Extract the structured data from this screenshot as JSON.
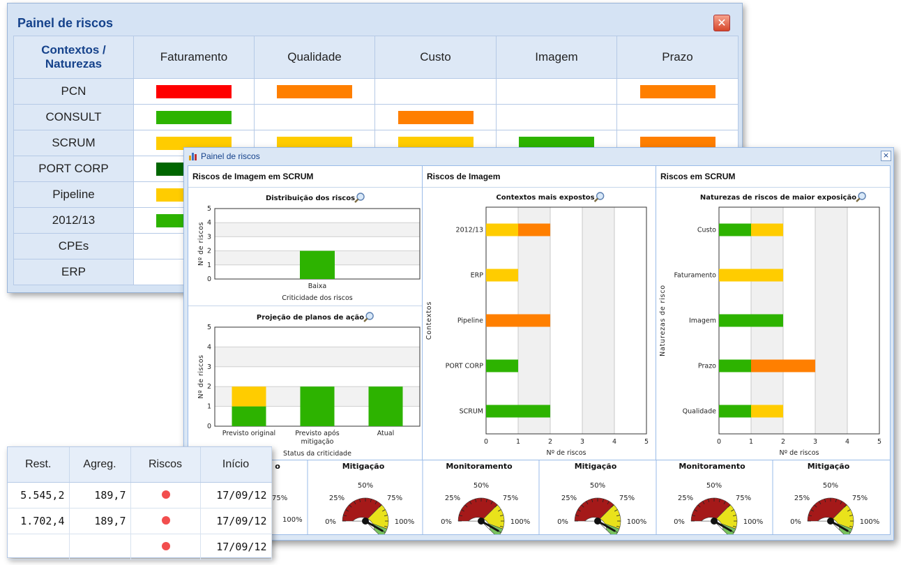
{
  "colors": {
    "red": "#ff0000",
    "orange": "#ff7f00",
    "green": "#2db300",
    "yellow": "#ffcc00",
    "darkgreen": "#006600",
    "titleblue": "#15428b"
  },
  "back_window": {
    "title": "Painel de riscos",
    "corner_header": [
      "Contextos /",
      "Naturezas"
    ],
    "columns": [
      "Faturamento",
      "Qualidade",
      "Custo",
      "Imagem",
      "Prazo"
    ],
    "rows": [
      {
        "label": "PCN",
        "cells": [
          "red",
          "orange",
          "",
          "",
          "orange"
        ]
      },
      {
        "label": "CONSULT",
        "cells": [
          "green",
          "",
          "orange",
          "",
          ""
        ]
      },
      {
        "label": "SCRUM",
        "cells": [
          "yellow",
          "yellow",
          "yellow",
          "green",
          "orange"
        ]
      },
      {
        "label": "PORT CORP",
        "cells": [
          "darkgreen",
          "",
          "",
          "",
          ""
        ]
      },
      {
        "label": "Pipeline",
        "cells": [
          "yellow",
          "",
          "",
          "",
          ""
        ]
      },
      {
        "label": "2012/13",
        "cells": [
          "green",
          "",
          "",
          "",
          ""
        ]
      },
      {
        "label": "CPEs",
        "cells": [
          "",
          "",
          "",
          "",
          ""
        ]
      },
      {
        "label": "ERP",
        "cells": [
          "",
          "",
          "",
          "",
          ""
        ]
      }
    ]
  },
  "front_window": {
    "title": "Painel de riscos",
    "close_label": "×",
    "panels": {
      "left": {
        "header": "Riscos de Imagem em SCRUM"
      },
      "middle": {
        "header": "Riscos de Imagem"
      },
      "right": {
        "header": "Riscos em SCRUM"
      }
    },
    "gauges": [
      {
        "title": "Mitigação",
        "labels": [
          "0%",
          "25%",
          "50%",
          "75%",
          "100%"
        ]
      },
      {
        "title": "Monitoramento",
        "labels": [
          "0%",
          "25%",
          "50%",
          "75%",
          "100%"
        ]
      },
      {
        "title": "Mitigação",
        "labels": [
          "0%",
          "25%",
          "50%",
          "75%",
          "100%"
        ]
      },
      {
        "title": "Monitoramento",
        "labels": [
          "0%",
          "25%",
          "50%",
          "75%",
          "100%"
        ]
      },
      {
        "title": "Mitigação",
        "labels": [
          "0%",
          "25%",
          "50%",
          "75%",
          "100%"
        ]
      }
    ],
    "partial_gauge_label": "o",
    "partial_gauge_ticks": [
      "75%",
      "100%"
    ]
  },
  "chart_data": [
    {
      "type": "bar",
      "title": "Distribuição dos riscos",
      "xlabel": "Criticidade dos riscos",
      "ylabel": "Nº de riscos",
      "categories": [
        "Baixa"
      ],
      "series": [
        {
          "color": "#2db300",
          "values": [
            2
          ]
        }
      ],
      "ylim": [
        0,
        5
      ],
      "yticks": [
        0,
        1,
        2,
        3,
        4,
        5
      ]
    },
    {
      "type": "bar",
      "title": "Projeção de planos de ação",
      "xlabel": "Status da criticidade",
      "ylabel": "Nº de riscos",
      "categories": [
        [
          "Previsto original"
        ],
        [
          "Previsto após",
          "mitigação"
        ],
        [
          "Atual"
        ]
      ],
      "series": [
        {
          "color": "#2db300",
          "values": [
            1,
            2,
            2
          ]
        },
        {
          "color": "#ffcc00",
          "values": [
            1,
            0,
            0
          ]
        }
      ],
      "stacked": true,
      "ylim": [
        0,
        5
      ],
      "yticks": [
        0,
        1,
        2,
        3,
        4,
        5
      ]
    },
    {
      "type": "bar",
      "orientation": "horizontal",
      "title": "Contextos mais expostos",
      "xlabel": "Nº de riscos",
      "ylabel": "Contextos",
      "categories": [
        "2012/13",
        "ERP",
        "Pipeline",
        "PORT CORP",
        "SCRUM"
      ],
      "segments": [
        [
          {
            "color": "#ffcc00",
            "value": 1
          },
          {
            "color": "#ff7f00",
            "value": 1
          }
        ],
        [
          {
            "color": "#ffcc00",
            "value": 1
          }
        ],
        [
          {
            "color": "#ff7f00",
            "value": 2
          }
        ],
        [
          {
            "color": "#2db300",
            "value": 1
          }
        ],
        [
          {
            "color": "#2db300",
            "value": 2
          }
        ]
      ],
      "xlim": [
        0,
        5
      ],
      "xticks": [
        0,
        1,
        2,
        3,
        4,
        5
      ]
    },
    {
      "type": "bar",
      "orientation": "horizontal",
      "title": "Naturezas de riscos de maior exposição",
      "xlabel": "Nº de riscos",
      "ylabel": "Naturezas de risco",
      "categories": [
        "Custo",
        "Faturamento",
        "Imagem",
        "Prazo",
        "Qualidade"
      ],
      "segments": [
        [
          {
            "color": "#2db300",
            "value": 1
          },
          {
            "color": "#ffcc00",
            "value": 1
          }
        ],
        [
          {
            "color": "#ffcc00",
            "value": 2
          }
        ],
        [
          {
            "color": "#2db300",
            "value": 2
          }
        ],
        [
          {
            "color": "#2db300",
            "value": 1
          },
          {
            "color": "#ff7f00",
            "value": 2
          }
        ],
        [
          {
            "color": "#2db300",
            "value": 1
          },
          {
            "color": "#ffcc00",
            "value": 1
          }
        ]
      ],
      "xlim": [
        0,
        5
      ],
      "xticks": [
        0,
        1,
        2,
        3,
        4,
        5
      ]
    }
  ],
  "grid": {
    "columns": [
      "Rest.",
      "Agreg.",
      "Riscos",
      "Início"
    ],
    "rows": [
      {
        "rest": "5.545,2",
        "agreg": "189,7",
        "status": "red-dot",
        "inicio": "17/09/12"
      },
      {
        "rest": "1.702,4",
        "agreg": "189,7",
        "status": "red-dot",
        "inicio": "17/09/12"
      },
      {
        "rest": "",
        "agreg": "",
        "status": "red-dot",
        "inicio": "17/09/12"
      }
    ]
  }
}
